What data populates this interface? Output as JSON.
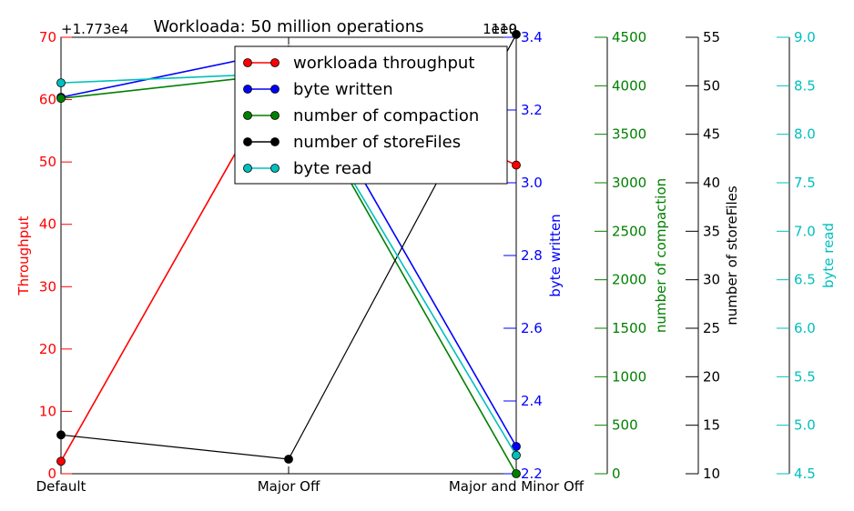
{
  "chart_data": {
    "type": "line",
    "title": "Workloada: 50 million operations",
    "categories": [
      "Default",
      "Major Off",
      "Major and Minor Off"
    ],
    "legend_position": "top-center",
    "grid": false,
    "axes": [
      {
        "id": "throughput",
        "label": "Throughput",
        "color": "#ff0000",
        "side": "left",
        "ylim": [
          0,
          70
        ],
        "ticks": [
          "0",
          "10",
          "20",
          "30",
          "40",
          "50",
          "60",
          "70"
        ],
        "offset_text": "+1.773e4"
      },
      {
        "id": "byte_written",
        "label": "byte written",
        "color": "#0000ff",
        "side": "right",
        "ylim": [
          2.2,
          3.4
        ],
        "ticks": [
          "2.2",
          "2.4",
          "2.6",
          "2.8",
          "3.0",
          "3.2",
          "3.4"
        ],
        "offset_text": "1e10"
      },
      {
        "id": "compaction",
        "label": "number of compaction",
        "color": "#008000",
        "side": "right",
        "ylim": [
          0,
          4500
        ],
        "ticks": [
          "0",
          "500",
          "1000",
          "1500",
          "2000",
          "2500",
          "3000",
          "3500",
          "4000",
          "4500"
        ]
      },
      {
        "id": "storefiles",
        "label": "number of storeFiles",
        "color": "#000000",
        "side": "right",
        "ylim": [
          10,
          55
        ],
        "ticks": [
          "10",
          "15",
          "20",
          "25",
          "30",
          "35",
          "40",
          "45",
          "50",
          "55"
        ]
      },
      {
        "id": "byte_read",
        "label": "byte read",
        "color": "#00bfbf",
        "side": "right",
        "ylim": [
          4.5,
          9.0
        ],
        "ticks": [
          "4.5",
          "5.0",
          "5.5",
          "6.0",
          "6.5",
          "7.0",
          "7.5",
          "8.0",
          "8.5",
          "9.0"
        ],
        "offset_text": "1e9"
      }
    ],
    "series": [
      {
        "name": "workloada throughput",
        "axis": "throughput",
        "color": "#ff0000",
        "values": [
          2,
          66.5,
          49.5
        ]
      },
      {
        "name": "byte written",
        "axis": "byte_written",
        "color": "#0000ff",
        "values": [
          3.235,
          3.365,
          2.275
        ]
      },
      {
        "name": "number of compaction",
        "axis": "compaction",
        "color": "#008000",
        "values": [
          3870,
          4130,
          0
        ]
      },
      {
        "name": "number of storeFiles",
        "axis": "storefiles",
        "color": "#000000",
        "values": [
          14,
          11.5,
          55.3
        ]
      },
      {
        "name": "byte read",
        "axis": "byte_read",
        "color": "#00bfbf",
        "values": [
          8.53,
          8.63,
          4.69
        ]
      }
    ]
  }
}
